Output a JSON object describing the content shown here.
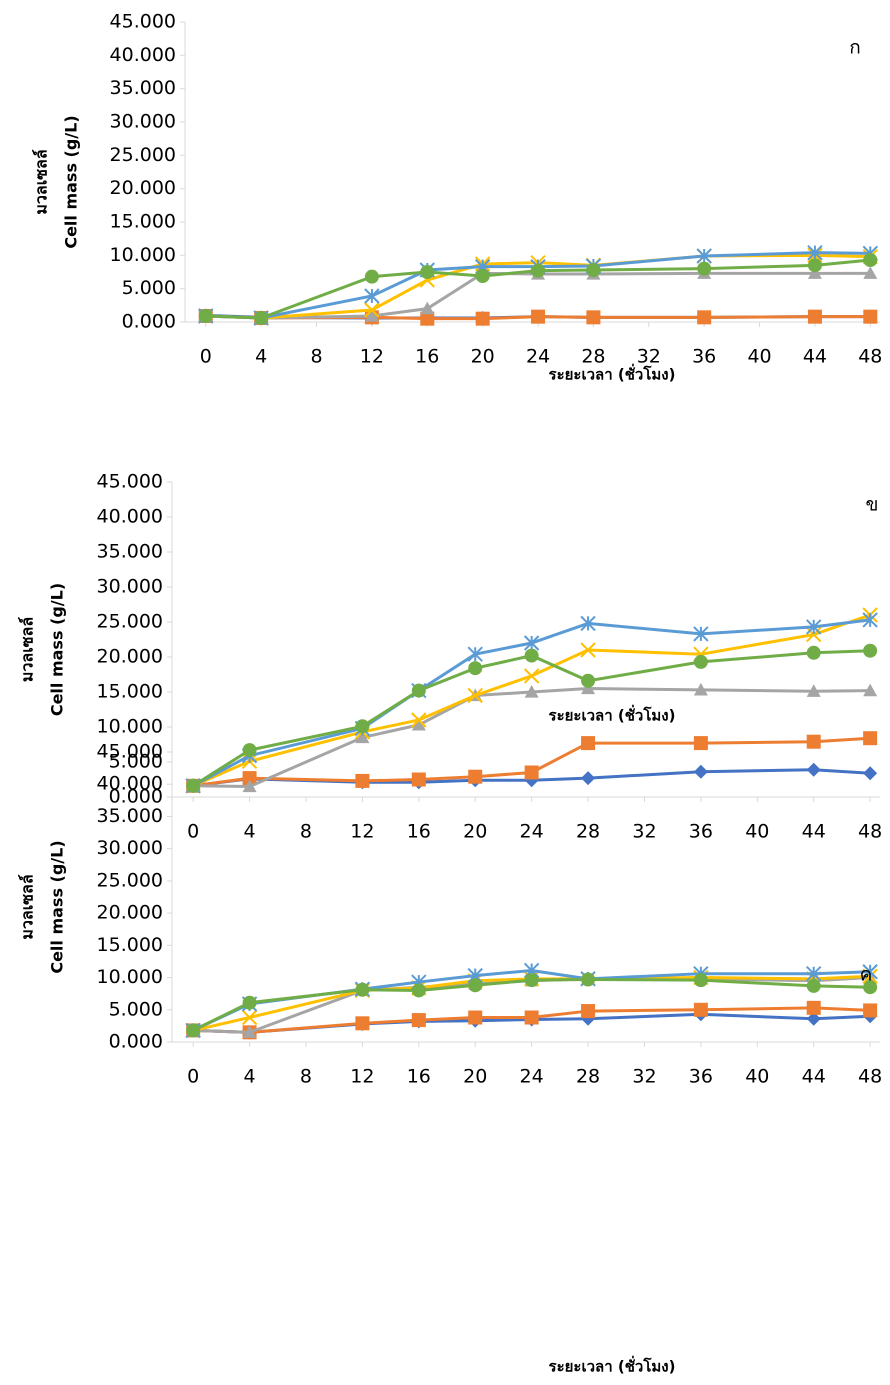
{
  "chart_data": [
    {
      "type": "line",
      "annotation": "ก",
      "ylabel": [
        "มวลเซลล์",
        "Cell mass (g/L)"
      ],
      "xlabel": "ระยะเวลา (ชั่วโมง)",
      "x": [
        0,
        4,
        12,
        16,
        20,
        24,
        28,
        36,
        44,
        48
      ],
      "xlim": [
        -1.5,
        48.7
      ],
      "xticks": [
        0,
        4,
        8,
        12,
        16,
        20,
        24,
        28,
        32,
        36,
        40,
        44,
        48
      ],
      "ylim": [
        0,
        45
      ],
      "yticks": [
        {
          "value": 0,
          "label": "0.000"
        },
        {
          "value": 5,
          "label": "5.000"
        },
        {
          "value": 10,
          "label": "10.000"
        },
        {
          "value": 15,
          "label": "15.000"
        },
        {
          "value": 20,
          "label": "20.000"
        },
        {
          "value": 25,
          "label": "25.000"
        },
        {
          "value": 30,
          "label": "30.000"
        },
        {
          "value": 35,
          "label": "35.000"
        },
        {
          "value": 40,
          "label": "40.000"
        },
        {
          "value": 45,
          "label": "45.000"
        }
      ],
      "series": [
        {
          "color": "#4472c4",
          "marker": "diamond",
          "values": [
            1.0,
            0.7,
            0.6,
            0.6,
            0.6,
            0.8,
            0.7,
            0.7,
            0.8,
            0.8
          ]
        },
        {
          "color": "#ed7d31",
          "marker": "square",
          "values": [
            0.9,
            0.6,
            0.7,
            0.5,
            0.5,
            0.8,
            0.7,
            0.7,
            0.8,
            0.8
          ]
        },
        {
          "color": "#a5a5a5",
          "marker": "triangle",
          "values": [
            0.9,
            0.6,
            0.9,
            2.0,
            7.3,
            7.2,
            7.2,
            7.3,
            7.3,
            7.3
          ]
        },
        {
          "color": "#ffc000",
          "marker": "x",
          "values": [
            0.9,
            0.6,
            1.8,
            6.3,
            8.7,
            8.9,
            8.5,
            9.9,
            10.0,
            9.8
          ]
        },
        {
          "color": "#5b9bd5",
          "marker": "star",
          "values": [
            0.9,
            0.6,
            3.9,
            7.8,
            8.3,
            8.3,
            8.4,
            9.9,
            10.4,
            10.3
          ]
        },
        {
          "color": "#70ad47",
          "marker": "circle",
          "values": [
            0.9,
            0.6,
            6.8,
            7.5,
            6.9,
            7.7,
            7.8,
            8.0,
            8.5,
            9.3
          ]
        }
      ]
    },
    {
      "type": "line",
      "annotation": "ข",
      "ylabel": [
        "มวลเซลล์",
        "Cell mass (g/L)"
      ],
      "xlabel": "ระยะเวลา (ชั่วโมง)",
      "x": [
        0,
        4,
        12,
        16,
        20,
        24,
        28,
        36,
        44,
        48
      ],
      "xlim": [
        -1.5,
        48.7
      ],
      "xticks": [
        0,
        4,
        8,
        12,
        16,
        20,
        24,
        28,
        32,
        36,
        40,
        44,
        48
      ],
      "ylim": [
        0,
        45
      ],
      "yticks": [
        {
          "value": 0,
          "label": "0.000"
        },
        {
          "value": 5,
          "label": "5.000"
        },
        {
          "value": 10,
          "label": "10.000"
        },
        {
          "value": 15,
          "label": "15.000"
        },
        {
          "value": 20,
          "label": "20.000"
        },
        {
          "value": 25,
          "label": "25.000"
        },
        {
          "value": 30,
          "label": "30.000"
        },
        {
          "value": 35,
          "label": "35.000"
        },
        {
          "value": 40,
          "label": "40.000"
        },
        {
          "value": 45,
          "label": "45.000"
        }
      ],
      "series": [
        {
          "color": "#4472c4",
          "marker": "diamond",
          "values": [
            1.6,
            2.6,
            2.1,
            2.1,
            2.4,
            2.4,
            2.7,
            3.6,
            3.9,
            3.4
          ]
        },
        {
          "color": "#ed7d31",
          "marker": "square",
          "values": [
            1.6,
            2.7,
            2.3,
            2.5,
            2.9,
            3.5,
            7.7,
            7.7,
            7.9,
            8.4
          ]
        },
        {
          "color": "#a5a5a5",
          "marker": "triangle",
          "values": [
            1.6,
            1.5,
            8.5,
            10.3,
            14.5,
            15.0,
            15.5,
            15.3,
            15.1,
            15.2
          ]
        },
        {
          "color": "#ffc000",
          "marker": "x",
          "values": [
            1.6,
            5.1,
            9.3,
            11.0,
            14.5,
            17.3,
            21.0,
            20.4,
            23.2,
            26.0
          ]
        },
        {
          "color": "#5b9bd5",
          "marker": "star",
          "values": [
            1.6,
            5.9,
            9.8,
            15.2,
            20.4,
            22.0,
            24.8,
            23.3,
            24.3,
            25.3
          ]
        },
        {
          "color": "#70ad47",
          "marker": "circle",
          "values": [
            1.6,
            6.7,
            10.1,
            15.2,
            18.4,
            20.2,
            16.6,
            19.3,
            20.6,
            20.9
          ]
        }
      ]
    },
    {
      "type": "line",
      "annotation": "ค",
      "ylabel": [
        "มวลเซลล์",
        "Cell mass (g/L)"
      ],
      "xlabel": "ระยะเวลา (ชั่วโมง)",
      "x": [
        0,
        4,
        12,
        16,
        20,
        24,
        28,
        36,
        44,
        48
      ],
      "xlim": [
        -1.5,
        48.7
      ],
      "xticks": [
        0,
        4,
        8,
        12,
        16,
        20,
        24,
        28,
        32,
        36,
        40,
        44,
        48
      ],
      "ylim": [
        0,
        45
      ],
      "yticks": [
        {
          "value": 0,
          "label": "0.000"
        },
        {
          "value": 5,
          "label": "5.000"
        },
        {
          "value": 10,
          "label": "10.000"
        },
        {
          "value": 15,
          "label": "15.000"
        },
        {
          "value": 20,
          "label": "20.000"
        },
        {
          "value": 25,
          "label": "25.000"
        },
        {
          "value": 30,
          "label": "30.000"
        },
        {
          "value": 35,
          "label": "35.000"
        },
        {
          "value": 40,
          "label": "40.000"
        },
        {
          "value": 45,
          "label": "45.000"
        }
      ],
      "series": [
        {
          "color": "#4472c4",
          "marker": "diamond",
          "values": [
            1.8,
            1.5,
            2.8,
            3.2,
            3.3,
            3.5,
            3.6,
            4.3,
            3.6,
            4.0
          ]
        },
        {
          "color": "#ed7d31",
          "marker": "square",
          "values": [
            1.8,
            1.5,
            2.9,
            3.4,
            3.8,
            3.8,
            4.8,
            5.0,
            5.3,
            4.9
          ]
        },
        {
          "color": "#a5a5a5",
          "marker": "triangle",
          "values": [
            1.8,
            1.5,
            8.0,
            8.5,
            9.0,
            9.5,
            9.8,
            9.8,
            9.5,
            10.0
          ]
        },
        {
          "color": "#ffc000",
          "marker": "x",
          "values": [
            1.8,
            3.8,
            8.0,
            8.4,
            9.5,
            9.8,
            9.8,
            10.0,
            9.8,
            10.2
          ]
        },
        {
          "color": "#5b9bd5",
          "marker": "star",
          "values": [
            1.8,
            5.9,
            8.2,
            9.3,
            10.3,
            11.1,
            9.8,
            10.6,
            10.6,
            10.9
          ]
        },
        {
          "color": "#70ad47",
          "marker": "circle",
          "values": [
            1.8,
            6.1,
            8.1,
            8.0,
            8.8,
            9.6,
            9.7,
            9.6,
            8.7,
            8.5
          ]
        }
      ]
    }
  ]
}
